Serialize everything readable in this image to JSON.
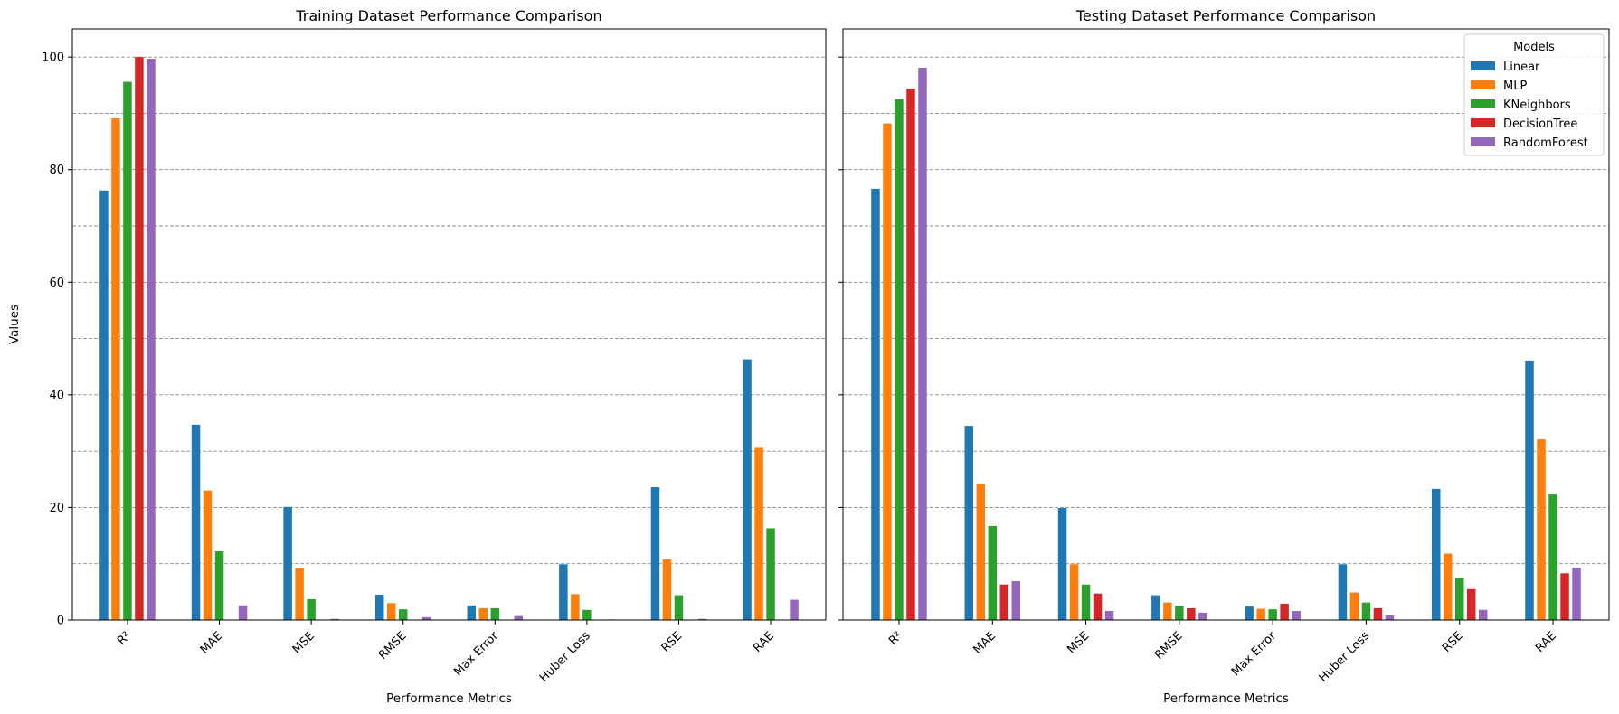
{
  "chart_data": [
    {
      "type": "bar",
      "title": "Training Dataset Performance Comparison",
      "xlabel": "Performance Metrics",
      "ylabel": "Values",
      "ylim": [
        0,
        105
      ],
      "yticks": [
        0,
        20,
        40,
        60,
        80,
        100
      ],
      "grid": "y-dashed",
      "categories": [
        "R²",
        "MAE",
        "MSE",
        "RMSE",
        "Max Error",
        "Huber Loss",
        "RSE",
        "RAE"
      ],
      "series": [
        {
          "name": "Linear",
          "color": "#1f77b4",
          "values": [
            76.3,
            34.7,
            20.1,
            4.5,
            2.6,
            9.9,
            23.6,
            46.3
          ]
        },
        {
          "name": "MLP",
          "color": "#ff7f0e",
          "values": [
            89.1,
            23.0,
            9.2,
            3.0,
            2.1,
            4.6,
            10.8,
            30.6
          ]
        },
        {
          "name": "KNeighbors",
          "color": "#2ca02c",
          "values": [
            95.6,
            12.2,
            3.7,
            1.9,
            2.1,
            1.8,
            4.4,
            16.3
          ]
        },
        {
          "name": "DecisionTree",
          "color": "#d62728",
          "values": [
            100.0,
            0.0,
            0.0,
            0.0,
            0.0,
            0.0,
            0.0,
            0.0
          ]
        },
        {
          "name": "RandomForest",
          "color": "#9467bd",
          "values": [
            99.7,
            2.6,
            0.2,
            0.5,
            0.7,
            0.1,
            0.2,
            3.6
          ]
        }
      ]
    },
    {
      "type": "bar",
      "title": "Testing Dataset Performance Comparison",
      "xlabel": "Performance Metrics",
      "ylabel": "",
      "ylim": [
        0,
        105
      ],
      "yticks": [
        0,
        20,
        40,
        60,
        80,
        100
      ],
      "grid": "y-dashed",
      "legend": {
        "title": "Models",
        "placement": "top-right"
      },
      "categories": [
        "R²",
        "MAE",
        "MSE",
        "RMSE",
        "Max Error",
        "Huber Loss",
        "RSE",
        "RAE"
      ],
      "series": [
        {
          "name": "Linear",
          "color": "#1f77b4",
          "values": [
            76.6,
            34.5,
            19.9,
            4.4,
            2.4,
            9.9,
            23.3,
            46.1
          ]
        },
        {
          "name": "MLP",
          "color": "#ff7f0e",
          "values": [
            88.2,
            24.1,
            9.9,
            3.1,
            2.0,
            4.9,
            11.8,
            32.1
          ]
        },
        {
          "name": "KNeighbors",
          "color": "#2ca02c",
          "values": [
            92.5,
            16.7,
            6.3,
            2.5,
            1.9,
            3.1,
            7.4,
            22.3
          ]
        },
        {
          "name": "DecisionTree",
          "color": "#d62728",
          "values": [
            94.4,
            6.3,
            4.7,
            2.1,
            2.9,
            2.1,
            5.5,
            8.3
          ]
        },
        {
          "name": "RandomForest",
          "color": "#9467bd",
          "values": [
            98.1,
            6.9,
            1.6,
            1.3,
            1.6,
            0.8,
            1.8,
            9.3
          ]
        }
      ]
    }
  ]
}
